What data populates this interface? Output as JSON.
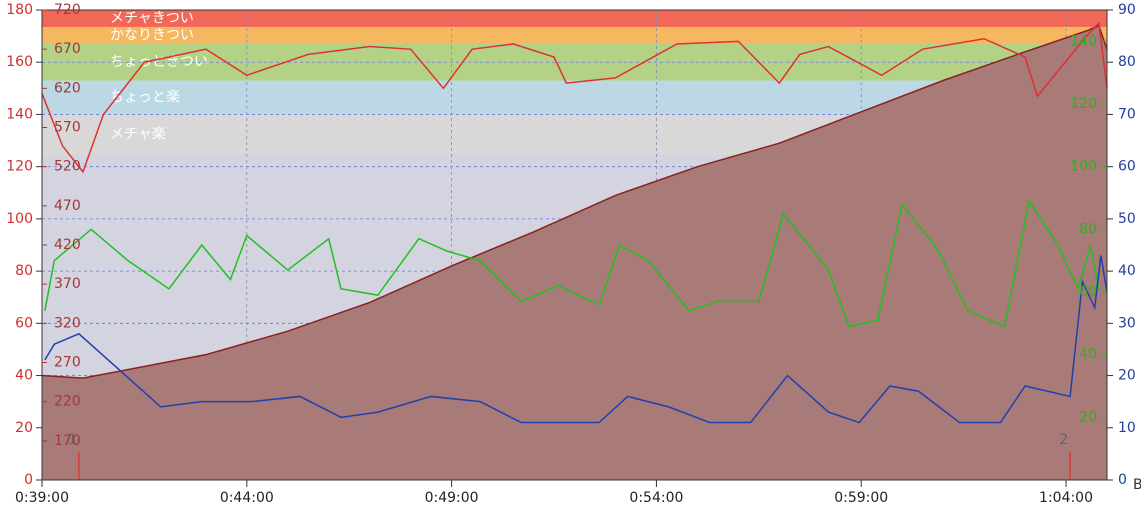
{
  "chart_data": {
    "type": "line",
    "xlim": [
      39,
      65
    ],
    "xticks": [
      {
        "value": 39,
        "label": "0:39:00"
      },
      {
        "value": 44,
        "label": "0:44:00"
      },
      {
        "value": 49,
        "label": "0:49:00"
      },
      {
        "value": 54,
        "label": "0:54:00"
      },
      {
        "value": 59,
        "label": "0:59:00"
      },
      {
        "value": 64,
        "label": "1:04:00"
      }
    ],
    "ylim": [
      0,
      180
    ],
    "yticks": [
      0,
      20,
      40,
      60,
      80,
      100,
      120,
      140,
      160,
      180
    ],
    "ycolor": "#d03030",
    "y2lim": [
      0,
      90
    ],
    "y2ticks": [
      0,
      10,
      20,
      30,
      40,
      50,
      60,
      70,
      80,
      90
    ],
    "y2color": "#2040a0",
    "y2unit": "B",
    "y3lim": [
      0,
      150
    ],
    "y3ticks": [
      20,
      40,
      60,
      80,
      100,
      120,
      140
    ],
    "y3color": "#30b020",
    "y4lim": [
      120,
      720
    ],
    "y4ticks": [
      170,
      220,
      270,
      320,
      370,
      420,
      470,
      520,
      570,
      620,
      670,
      720
    ],
    "y4color": "#a03838",
    "grid": true,
    "zones": [
      {
        "name": "メチャきつい",
        "from": 173.5,
        "to": 180,
        "color": "#f26858"
      },
      {
        "name": "かなりきつい",
        "from": 167,
        "to": 173.5,
        "color": "#f5b860"
      },
      {
        "name": "ちょっときつい",
        "from": 153,
        "to": 167,
        "color": "#b4d286"
      },
      {
        "name": "ちょっと楽",
        "from": 140,
        "to": 153,
        "color": "#bcd8e4"
      },
      {
        "name": "メチャ楽",
        "from": 124.5,
        "to": 140,
        "color": "#d8d8d8"
      }
    ],
    "series": [
      {
        "color": "#8b2020",
        "fill": "#a87a78",
        "axis": "y",
        "x": [
          39,
          40,
          41,
          43,
          45,
          47,
          49,
          51,
          53,
          55,
          57,
          59,
          61,
          63,
          64.5,
          64.8,
          65
        ],
        "values": [
          40,
          39,
          42,
          48,
          57,
          68,
          82,
          95,
          109,
          120,
          129,
          141,
          153,
          164,
          172,
          174,
          165
        ]
      },
      {
        "color": "#e03030",
        "axis": "y",
        "x": [
          39,
          39.5,
          40,
          40.5,
          41.5,
          43,
          44,
          45.5,
          47,
          48,
          48.8,
          49.5,
          50.5,
          51.5,
          51.8,
          53,
          54.5,
          56,
          57,
          57.5,
          58.2,
          59.5,
          60.5,
          62,
          63,
          63.3,
          64.5,
          64.8,
          65
        ],
        "values": [
          148,
          128,
          118,
          140,
          160,
          165,
          155,
          163,
          166,
          165,
          150,
          165,
          167,
          162,
          152,
          154,
          167,
          168,
          152,
          163,
          166,
          155,
          165,
          169,
          162,
          147,
          170,
          175,
          150
        ]
      },
      {
        "color": "#20c020",
        "axis": "y3",
        "x": [
          39.07,
          39.3,
          40.2,
          41.1,
          42.1,
          42.9,
          43.6,
          44.0,
          45.0,
          46.0,
          46.3,
          47.2,
          48.2,
          48.9,
          49.7,
          50.7,
          51.6,
          52.6,
          53.1,
          53.8,
          54.8,
          55.5,
          56.5,
          57.1,
          58.2,
          58.7,
          59.4,
          60.0,
          60.9,
          61.6,
          62.5,
          63.1,
          63.8,
          64.3,
          64.6,
          64.8
        ],
        "values": [
          54,
          70,
          80,
          70,
          61,
          75,
          64,
          78,
          67,
          77,
          61,
          59,
          77,
          73,
          70,
          57,
          62,
          56,
          75,
          70,
          54,
          57,
          57,
          85,
          67,
          49,
          51,
          88,
          73,
          54,
          49,
          89,
          75,
          61,
          75,
          61
        ]
      },
      {
        "color": "#2040b0",
        "axis": "y2",
        "x": [
          39.07,
          39.3,
          39.9,
          40.9,
          41.9,
          42.9,
          44.1,
          45.3,
          46.3,
          47.2,
          48.5,
          49.7,
          50.7,
          51.6,
          52.6,
          53.3,
          54.3,
          55.3,
          56.3,
          57.2,
          58.2,
          58.95,
          59.7,
          60.4,
          61.4,
          62.4,
          63.0,
          64.1,
          64.4,
          64.7,
          64.85,
          65
        ],
        "values": [
          23,
          26,
          28,
          21,
          14,
          15,
          15,
          16,
          12,
          13,
          16,
          15,
          11,
          11,
          11,
          16,
          14,
          11,
          11,
          20,
          13,
          11,
          18,
          17,
          11,
          11,
          18,
          16,
          38,
          33,
          43,
          36
        ]
      }
    ],
    "laps": [
      {
        "x": 39.9,
        "label": "1"
      },
      {
        "x": 64.1,
        "label": "2"
      }
    ]
  }
}
